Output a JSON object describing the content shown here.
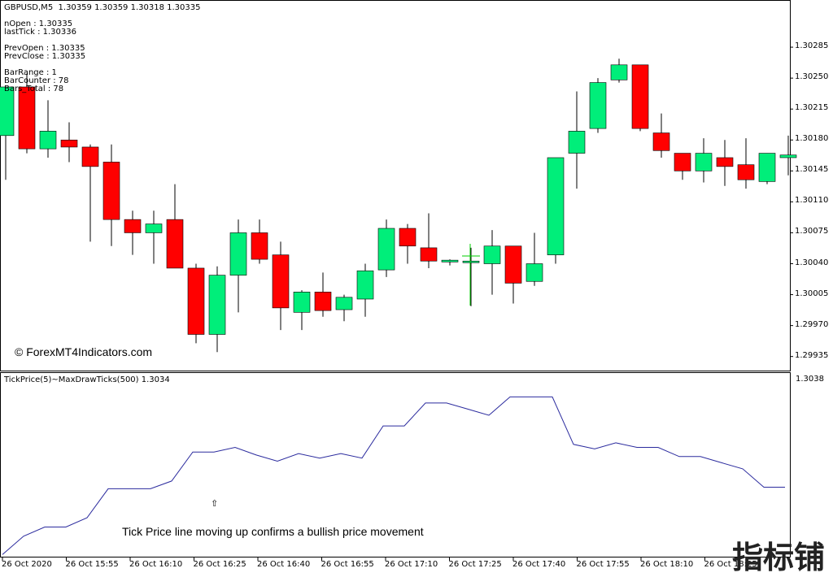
{
  "main_chart": {
    "header": "GBPUSD,M5  1.30359 1.30359 1.30318 1.30335",
    "info": [
      "nOpen : 1.30335",
      "lastTick : 1.30336",
      "",
      "PrevOpen : 1.30335",
      "PrevClose : 1.30335",
      "",
      "BarRange : 1",
      "BarCounter : 78",
      "Bars_Total : 78"
    ],
    "watermark": "© ForexMT4Indicators.com",
    "price_labels": [
      "1.30285",
      "1.30250",
      "1.30215",
      "1.30180",
      "1.30145",
      "1.30110",
      "1.30075",
      "1.30040",
      "1.30005",
      "1.29970",
      "1.29935"
    ],
    "colors": {
      "bull": "#00ee7a",
      "bear": "#ff0000",
      "wick": "#000000",
      "cursor": "#00cc00"
    }
  },
  "indicator": {
    "header": "TickPrice(5)~MaxDrawTicks(500) 1.3034",
    "level_label": "1.3038",
    "annotation": "Tick Price line moving up confirms a bullish price movement",
    "arrow_icon": "⇧",
    "line_color": "#2b2b9e"
  },
  "time_labels": [
    "26 Oct 2020",
    "26 Oct 15:55",
    "26 Oct 16:10",
    "26 Oct 16:25",
    "26 Oct 16:40",
    "26 Oct 16:55",
    "26 Oct 17:10",
    "26 Oct 17:25",
    "26 Oct 17:40",
    "26 Oct 17:55",
    "26 Oct 18:10",
    "26 Oct 18:25"
  ],
  "brand_text": "指标铺",
  "chart_data": [
    {
      "type": "candlestick",
      "title": "GBPUSD,M5",
      "ylim": [
        1.2992,
        1.3032
      ],
      "candles": [
        {
          "o": 1.30185,
          "h": 1.3024,
          "l": 1.30135,
          "c": 1.3024
        },
        {
          "o": 1.3024,
          "h": 1.30255,
          "l": 1.30165,
          "c": 1.3017
        },
        {
          "o": 1.3017,
          "h": 1.30225,
          "l": 1.3016,
          "c": 1.3019
        },
        {
          "o": 1.3018,
          "h": 1.302,
          "l": 1.30155,
          "c": 1.30172
        },
        {
          "o": 1.30172,
          "h": 1.30175,
          "l": 1.30065,
          "c": 1.3015
        },
        {
          "o": 1.30155,
          "h": 1.30175,
          "l": 1.3006,
          "c": 1.3009
        },
        {
          "o": 1.3009,
          "h": 1.301,
          "l": 1.3005,
          "c": 1.30075
        },
        {
          "o": 1.30075,
          "h": 1.301,
          "l": 1.3004,
          "c": 1.30085
        },
        {
          "o": 1.3009,
          "h": 1.3013,
          "l": 1.30035,
          "c": 1.30035
        },
        {
          "o": 1.30035,
          "h": 1.3004,
          "l": 1.2995,
          "c": 1.2996
        },
        {
          "o": 1.2996,
          "h": 1.30037,
          "l": 1.2994,
          "c": 1.30027
        },
        {
          "o": 1.30027,
          "h": 1.3009,
          "l": 1.29985,
          "c": 1.30075
        },
        {
          "o": 1.30075,
          "h": 1.3009,
          "l": 1.3004,
          "c": 1.30045
        },
        {
          "o": 1.3005,
          "h": 1.30065,
          "l": 1.29965,
          "c": 1.2999
        },
        {
          "o": 1.29985,
          "h": 1.3001,
          "l": 1.29965,
          "c": 1.30008
        },
        {
          "o": 1.30008,
          "h": 1.3003,
          "l": 1.2998,
          "c": 1.29987
        },
        {
          "o": 1.29988,
          "h": 1.30005,
          "l": 1.29975,
          "c": 1.30002
        },
        {
          "o": 1.3,
          "h": 1.3004,
          "l": 1.2998,
          "c": 1.30032
        },
        {
          "o": 1.30033,
          "h": 1.3009,
          "l": 1.30025,
          "c": 1.3008
        },
        {
          "o": 1.3008,
          "h": 1.30085,
          "l": 1.3004,
          "c": 1.3006
        },
        {
          "o": 1.30058,
          "h": 1.30097,
          "l": 1.30035,
          "c": 1.30043
        },
        {
          "o": 1.30042,
          "h": 1.30045,
          "l": 1.30038,
          "c": 1.30044
        },
        {
          "o": 1.30043,
          "h": 1.30058,
          "l": 1.29992,
          "c": 1.30043
        },
        {
          "o": 1.3004,
          "h": 1.30078,
          "l": 1.30005,
          "c": 1.3006
        },
        {
          "o": 1.3006,
          "h": 1.3006,
          "l": 1.29995,
          "c": 1.30018
        },
        {
          "o": 1.3002,
          "h": 1.30075,
          "l": 1.30015,
          "c": 1.3004
        },
        {
          "o": 1.3005,
          "h": 1.3016,
          "l": 1.3004,
          "c": 1.3016
        },
        {
          "o": 1.30165,
          "h": 1.30235,
          "l": 1.30125,
          "c": 1.3019
        },
        {
          "o": 1.30193,
          "h": 1.3025,
          "l": 1.30188,
          "c": 1.30245
        },
        {
          "o": 1.30248,
          "h": 1.30272,
          "l": 1.30245,
          "c": 1.30265
        },
        {
          "o": 1.30265,
          "h": 1.30265,
          "l": 1.3019,
          "c": 1.30193
        },
        {
          "o": 1.30188,
          "h": 1.3021,
          "l": 1.3016,
          "c": 1.30168
        },
        {
          "o": 1.30165,
          "h": 1.30165,
          "l": 1.30135,
          "c": 1.30145
        },
        {
          "o": 1.30145,
          "h": 1.30182,
          "l": 1.30132,
          "c": 1.30165
        },
        {
          "o": 1.3016,
          "h": 1.3018,
          "l": 1.30128,
          "c": 1.3015
        },
        {
          "o": 1.30152,
          "h": 1.30182,
          "l": 1.30125,
          "c": 1.30135
        },
        {
          "o": 1.30133,
          "h": 1.30165,
          "l": 1.3013,
          "c": 1.30165
        },
        {
          "o": 1.3016,
          "h": 1.30185,
          "l": 1.3014,
          "c": 1.30163
        }
      ]
    },
    {
      "type": "line",
      "title": "TickPrice(5)~MaxDrawTicks(500) 1.3034",
      "ylim": [
        1.30265,
        1.30385
      ],
      "series": [
        {
          "values": [
            1.30268,
            1.3028,
            1.30286,
            1.30286,
            1.30292,
            1.30311,
            1.30311,
            1.30311,
            1.30316,
            1.30335,
            1.30335,
            1.30338,
            1.30333,
            1.30329,
            1.30334,
            1.30331,
            1.30334,
            1.30331,
            1.30352,
            1.30352,
            1.30367,
            1.30367,
            1.30363,
            1.30359,
            1.30371,
            1.30371,
            1.30371,
            1.3034,
            1.30337,
            1.30341,
            1.30338,
            1.30338,
            1.30332,
            1.30332,
            1.30328,
            1.30324,
            1.30312,
            1.30312
          ]
        }
      ]
    }
  ]
}
